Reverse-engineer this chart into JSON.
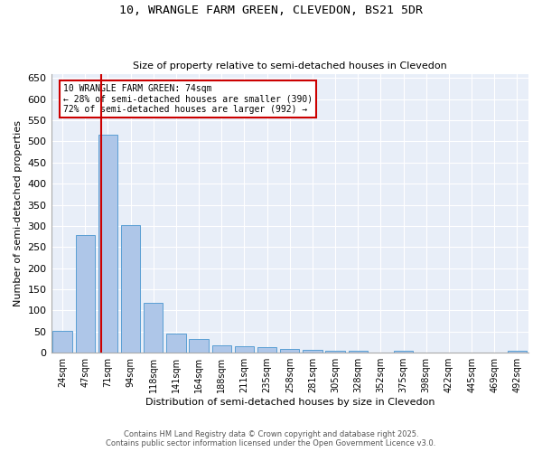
{
  "title_line1": "10, WRANGLE FARM GREEN, CLEVEDON, BS21 5DR",
  "title_line2": "Size of property relative to semi-detached houses in Clevedon",
  "xlabel": "Distribution of semi-detached houses by size in Clevedon",
  "ylabel": "Number of semi-detached properties",
  "bar_labels": [
    "24sqm",
    "47sqm",
    "71sqm",
    "94sqm",
    "118sqm",
    "141sqm",
    "164sqm",
    "188sqm",
    "211sqm",
    "235sqm",
    "258sqm",
    "281sqm",
    "305sqm",
    "328sqm",
    "352sqm",
    "375sqm",
    "398sqm",
    "422sqm",
    "445sqm",
    "469sqm",
    "492sqm"
  ],
  "bar_values": [
    52,
    278,
    515,
    301,
    119,
    46,
    33,
    17,
    15,
    13,
    8,
    7,
    5,
    4,
    0,
    5,
    0,
    0,
    0,
    0,
    5
  ],
  "bar_color": "#aec6e8",
  "bar_edge_color": "#5a9fd4",
  "property_label": "10 WRANGLE FARM GREEN: 74sqm",
  "pct_smaller": 28,
  "pct_smaller_count": 390,
  "pct_larger": 72,
  "pct_larger_count": 992,
  "vline_color": "#cc0000",
  "annotation_box_color": "#cc0000",
  "ylim": [
    0,
    660
  ],
  "yticks": [
    0,
    50,
    100,
    150,
    200,
    250,
    300,
    350,
    400,
    450,
    500,
    550,
    600,
    650
  ],
  "footnote_line1": "Contains HM Land Registry data © Crown copyright and database right 2025.",
  "footnote_line2": "Contains public sector information licensed under the Open Government Licence v3.0.",
  "bg_color": "#e8eef8"
}
